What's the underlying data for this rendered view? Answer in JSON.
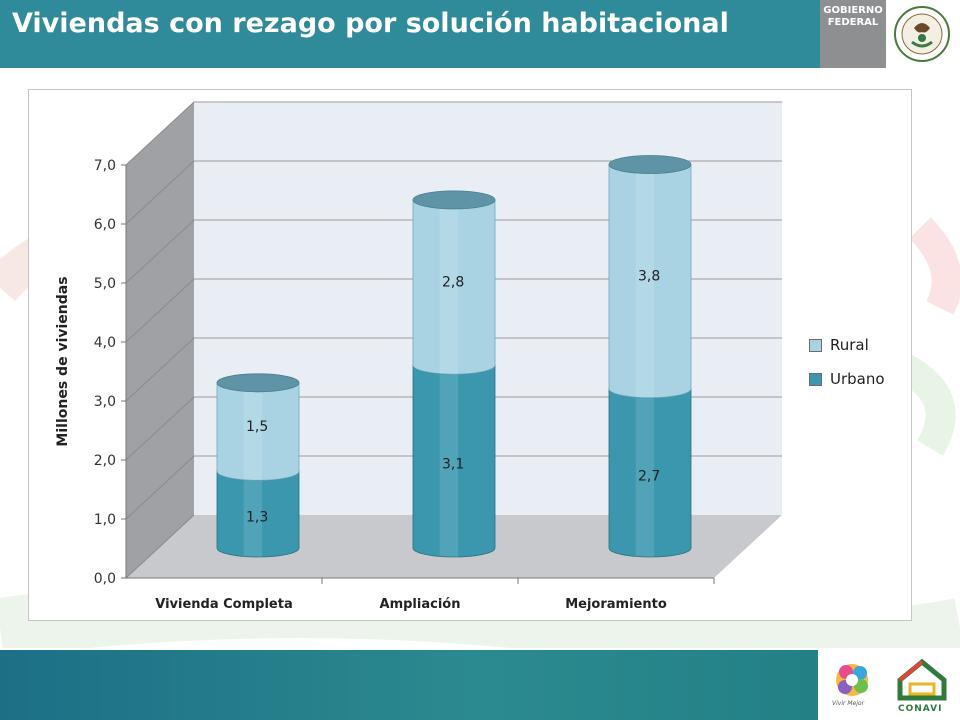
{
  "header": {
    "title": "Viviendas con rezago por solución habitacional",
    "logo_text_line1": "Gobierno",
    "logo_text_line2": "Federal"
  },
  "footer": {
    "logo1_label": "Vivir Mejor",
    "logo2_label": "CONAVI"
  },
  "colors": {
    "header_bg": "#2f8a99",
    "urbano": "#3a97ad",
    "rural": "#a9d3e3",
    "plot_bg": "#e9eef5",
    "floor": "#c7c9cc"
  },
  "chart_data": {
    "type": "bar",
    "stacked": true,
    "three_d": true,
    "title": "",
    "xlabel": "",
    "ylabel": "Millones de viviendas",
    "ylim": [
      0,
      7
    ],
    "yticks": [
      "0,0",
      "1,0",
      "2,0",
      "3,0",
      "4,0",
      "5,0",
      "6,0",
      "7,0"
    ],
    "categories": [
      "Vivienda Completa",
      "Ampliación",
      "Mejoramiento"
    ],
    "series": [
      {
        "name": "Urbano",
        "values": [
          1.3,
          3.1,
          2.7
        ],
        "labels": [
          "1,3",
          "3,1",
          "2,7"
        ],
        "color": "#3a97ad"
      },
      {
        "name": "Rural",
        "values": [
          1.5,
          2.8,
          3.8
        ],
        "labels": [
          "1,5",
          "2,8",
          "3,8"
        ],
        "color": "#a9d3e3"
      }
    ],
    "legend": {
      "position": "right",
      "order": [
        "Rural",
        "Urbano"
      ]
    },
    "grid": true
  }
}
